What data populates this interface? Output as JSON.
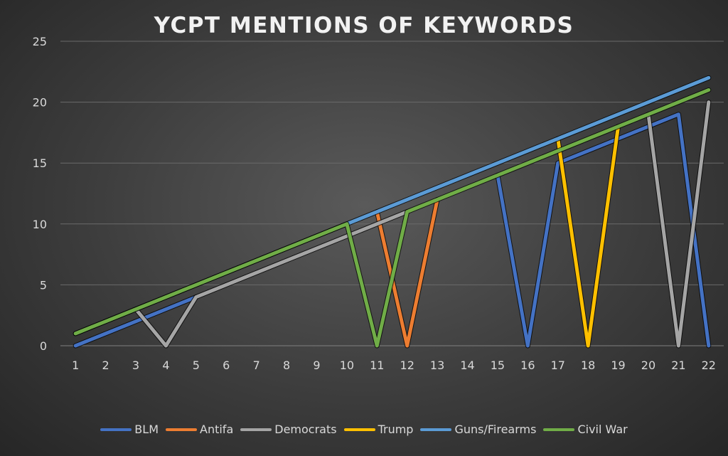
{
  "chart_data": {
    "type": "line",
    "title": "YCPT MENTIONS OF KEYWORDS",
    "xlabel": "",
    "ylabel": "",
    "x": [
      1,
      2,
      3,
      4,
      5,
      6,
      7,
      8,
      9,
      10,
      11,
      12,
      13,
      14,
      15,
      16,
      17,
      18,
      19,
      20,
      21,
      22
    ],
    "ylim": [
      0,
      25
    ],
    "yticks": [
      0,
      5,
      10,
      15,
      20,
      25
    ],
    "grid": true,
    "legend_position": "bottom",
    "series": [
      {
        "name": "BLM",
        "color": "#4472c4",
        "values": [
          0,
          1,
          2,
          3,
          4,
          null,
          null,
          null,
          null,
          null,
          null,
          null,
          null,
          null,
          14,
          0,
          15,
          16,
          17,
          18,
          19,
          0
        ]
      },
      {
        "name": "Antifa",
        "color": "#ed7d31",
        "values": [
          null,
          null,
          null,
          null,
          null,
          null,
          null,
          null,
          null,
          null,
          11,
          0,
          12,
          null,
          null,
          null,
          null,
          null,
          null,
          null,
          null,
          null
        ]
      },
      {
        "name": "Democrats",
        "color": "#a5a5a5",
        "values": [
          null,
          null,
          3,
          0,
          4,
          5,
          6,
          7,
          8,
          9,
          10,
          11,
          null,
          null,
          null,
          null,
          null,
          null,
          null,
          19,
          0,
          20
        ]
      },
      {
        "name": "Trump",
        "color": "#ffc000",
        "values": [
          null,
          null,
          null,
          null,
          null,
          null,
          null,
          null,
          null,
          null,
          null,
          null,
          null,
          null,
          null,
          null,
          17,
          0,
          18,
          null,
          null,
          null
        ]
      },
      {
        "name": "Guns/Firearms",
        "color": "#5b9bd5",
        "values": [
          1,
          2,
          3,
          4,
          5,
          6,
          7,
          8,
          9,
          10,
          11,
          12,
          13,
          14,
          15,
          16,
          17,
          18,
          19,
          20,
          21,
          22
        ]
      },
      {
        "name": "Civil War",
        "color": "#70ad47",
        "values": [
          1,
          2,
          3,
          4,
          5,
          6,
          7,
          8,
          9,
          10,
          0,
          11,
          12,
          13,
          14,
          15,
          16,
          17,
          18,
          19,
          20,
          21
        ]
      }
    ]
  }
}
